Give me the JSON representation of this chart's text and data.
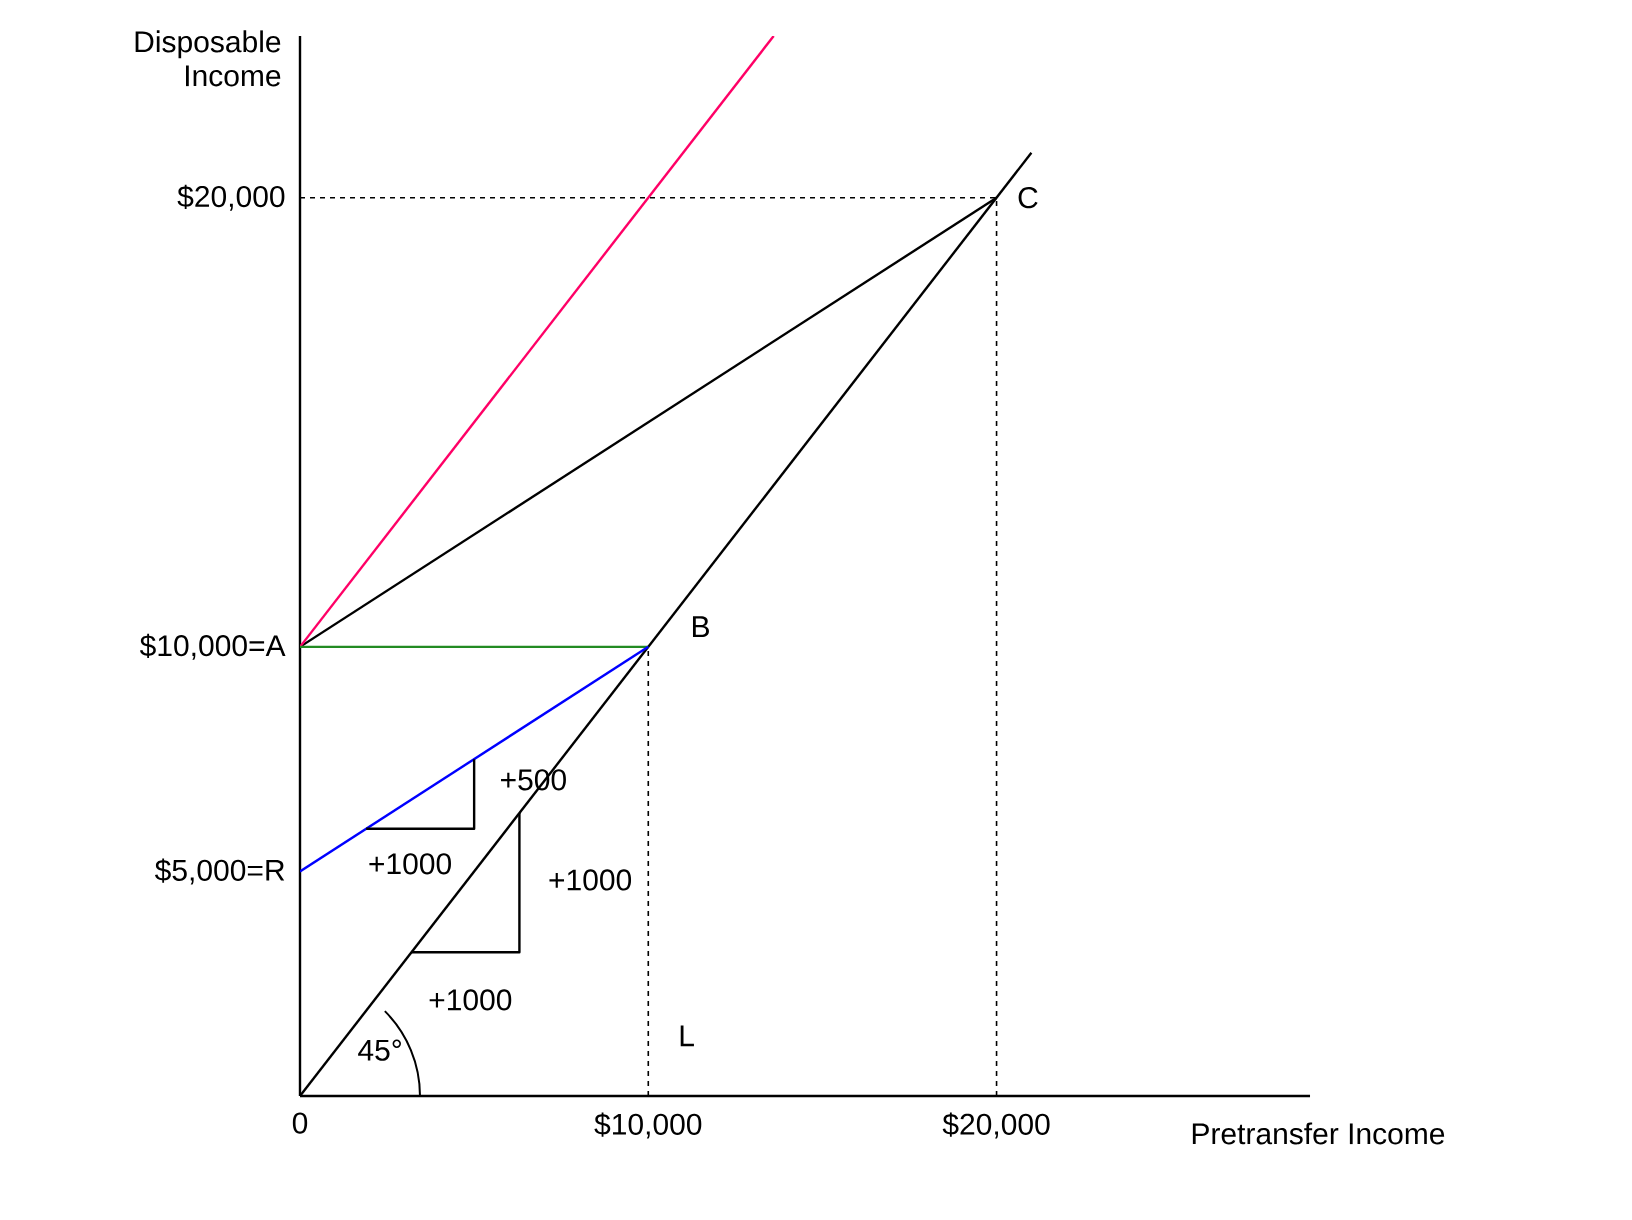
{
  "chart_data": {
    "type": "line",
    "xlabel": "Pretransfer Income",
    "ylabel": "Disposable Income",
    "xlim": [
      0,
      29000
    ],
    "ylim": [
      0,
      23600
    ],
    "xticks": [
      {
        "value": 0,
        "label": "0"
      },
      {
        "value": 10000,
        "label": "$10,000"
      },
      {
        "value": 20000,
        "label": "$20,000"
      }
    ],
    "yticks": [
      {
        "value": 5000,
        "label": "$5,000=R"
      },
      {
        "value": 10000,
        "label": "$10,000=A"
      },
      {
        "value": 20000,
        "label": "$20,000"
      }
    ],
    "series": [
      {
        "color": "#000000",
        "x": [
          0,
          21000
        ],
        "values": [
          0,
          21000
        ]
      },
      {
        "color": "#000000",
        "x": [
          0,
          20000
        ],
        "values": [
          10000,
          20000
        ]
      },
      {
        "color": "#ff0066",
        "x": [
          0,
          13600
        ],
        "values": [
          10000,
          23600
        ]
      },
      {
        "color": "#228b22",
        "x": [
          0,
          10000
        ],
        "values": [
          10000,
          10000
        ]
      },
      {
        "color": "#0000ff",
        "x": [
          0,
          10000
        ],
        "values": [
          5000,
          10000
        ]
      },
      {
        "color": "#000000",
        "x": [
          1900,
          5000,
          5000
        ],
        "values": [
          5950,
          5950,
          7500
        ]
      },
      {
        "color": "#000000",
        "x": [
          3200,
          6300,
          6300
        ],
        "values": [
          3200,
          3200,
          6300
        ]
      },
      {
        "color": "#000000",
        "line_style": "dashed",
        "x": [
          0,
          20000
        ],
        "values": [
          20000,
          20000
        ]
      },
      {
        "color": "#000000",
        "line_style": "dashed",
        "x": [
          20000,
          20000
        ],
        "values": [
          0,
          20000
        ]
      },
      {
        "color": "#000000",
        "line_style": "dashed",
        "x": [
          10000,
          10000
        ],
        "values": [
          0,
          10000
        ]
      }
    ],
    "annotations": [
      "B",
      "C",
      "L",
      "+500",
      "+1000",
      "+1000",
      "+1000",
      "45°"
    ]
  }
}
